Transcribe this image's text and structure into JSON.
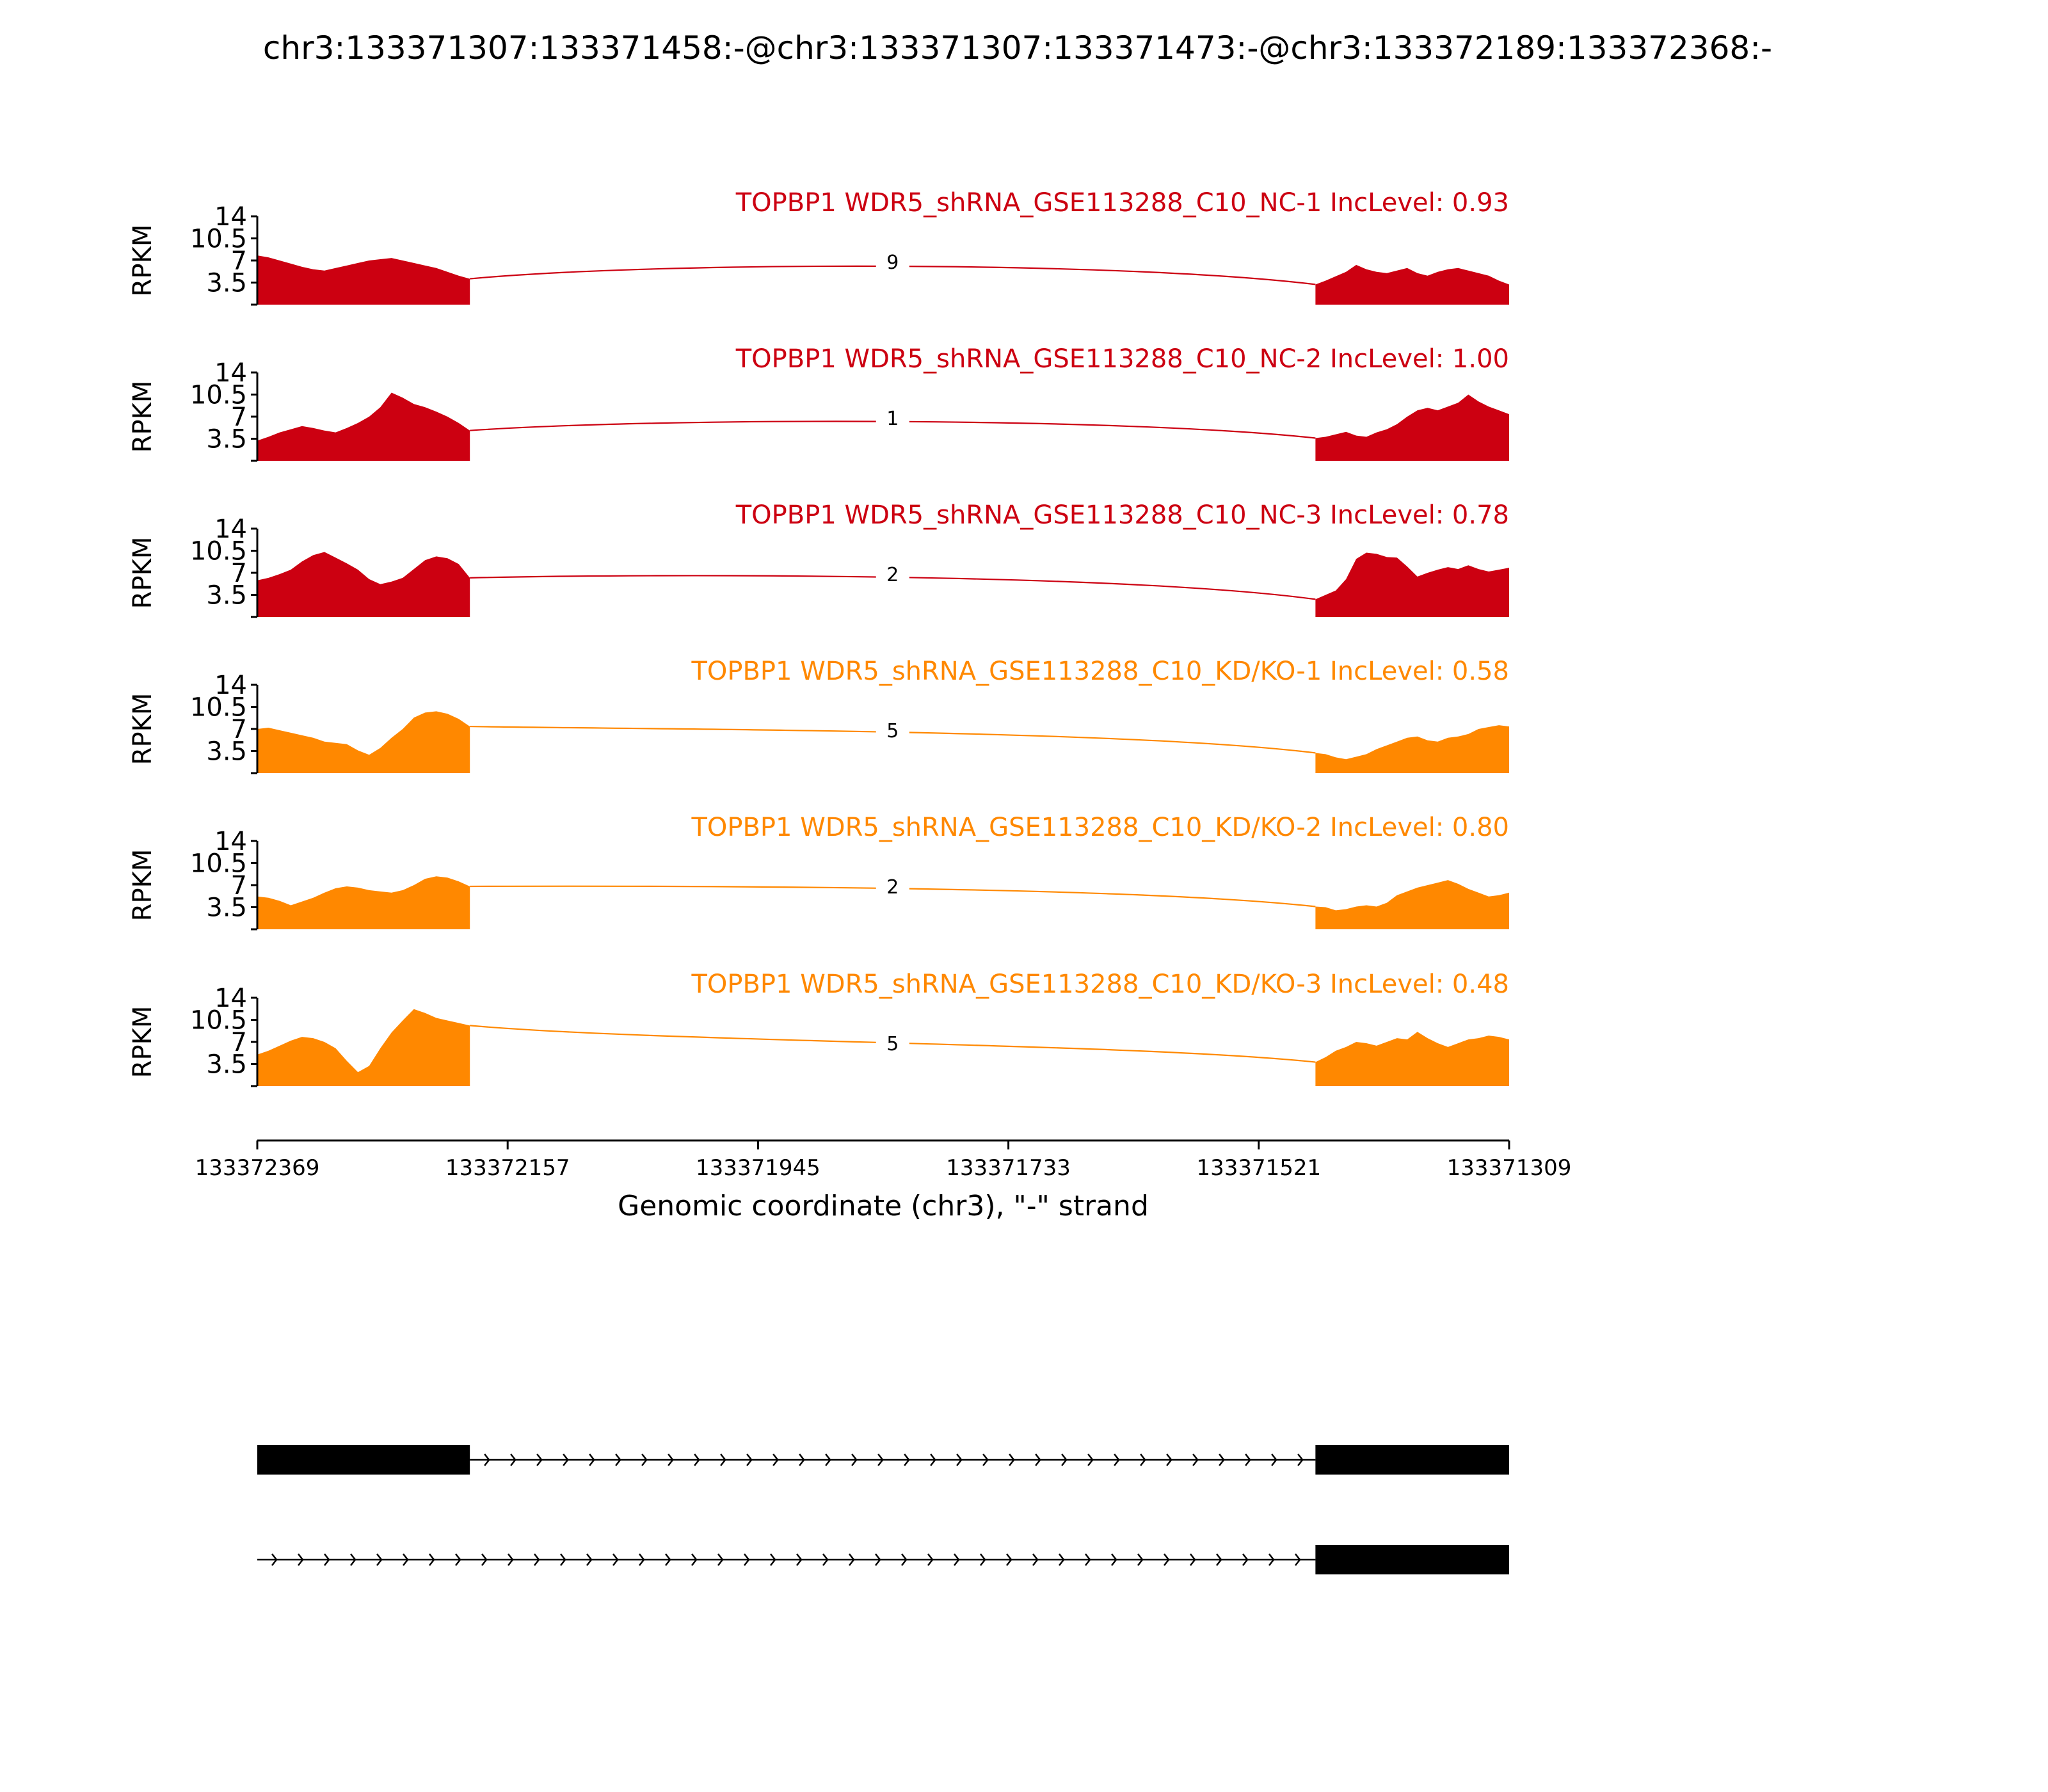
{
  "chart_data": {
    "type": "area",
    "title": "chr3:133371307:133371458:-@chr3:133371307:133371473:-@chr3:133372189:133372368:-",
    "xlabel": "Genomic coordinate (chr3), \"-\" strand",
    "ylabel": "RPKM",
    "x_reversed": true,
    "xlim": [
      133372369,
      133371309
    ],
    "x_ticks": [
      "133372369",
      "133372157",
      "133371945",
      "133371733",
      "133371521",
      "133371309"
    ],
    "ylim": [
      0,
      14
    ],
    "y_ticks": [
      "3.5",
      "7",
      "10.5",
      "14"
    ],
    "grid": false,
    "exons": [
      {
        "start": 133372369,
        "end": 133372189
      },
      {
        "start": 133371473,
        "end": 133371309
      }
    ],
    "colors": {
      "NC": "#cc0011",
      "KD": "#ff8800"
    },
    "series": [
      {
        "name": "TOPBP1 WDR5_shRNA_GSE113288_C10_NC-1 IncLevel: 0.93",
        "group": "NC",
        "exon1_profile": [
          7.8,
          7.5,
          7.0,
          6.5,
          6.0,
          5.6,
          5.4,
          5.8,
          6.2,
          6.6,
          7.0,
          7.2,
          7.4,
          7.0,
          6.6,
          6.2,
          5.8,
          5.2,
          4.6,
          4.1
        ],
        "exon2_profile": [
          3.2,
          3.8,
          4.5,
          5.2,
          6.3,
          5.6,
          5.2,
          5.0,
          5.4,
          5.8,
          5.0,
          4.6,
          5.2,
          5.6,
          5.8,
          5.4,
          5.0,
          4.6,
          3.8,
          3.2
        ],
        "junction_label": "9"
      },
      {
        "name": "TOPBP1 WDR5_shRNA_GSE113288_C10_NC-2 IncLevel: 1.00",
        "group": "NC",
        "exon1_profile": [
          3.2,
          3.8,
          4.5,
          5.0,
          5.5,
          5.2,
          4.8,
          4.5,
          5.2,
          6.0,
          7.0,
          8.5,
          10.8,
          10.0,
          9.0,
          8.5,
          7.8,
          7.0,
          6.0,
          4.8
        ],
        "exon2_profile": [
          3.6,
          3.8,
          4.2,
          4.6,
          4.0,
          3.8,
          4.5,
          5.0,
          5.8,
          7.0,
          8.0,
          8.4,
          8.0,
          8.6,
          9.2,
          10.5,
          9.4,
          8.6,
          8.0,
          7.4
        ],
        "junction_label": "1"
      },
      {
        "name": "TOPBP1 WDR5_shRNA_GSE113288_C10_NC-3 IncLevel: 0.78",
        "group": "NC",
        "exon1_profile": [
          5.8,
          6.2,
          6.8,
          7.5,
          8.8,
          9.8,
          10.3,
          9.4,
          8.5,
          7.5,
          6.0,
          5.2,
          5.6,
          6.2,
          7.6,
          9.0,
          9.6,
          9.3,
          8.4,
          6.2
        ],
        "exon2_profile": [
          2.8,
          3.5,
          4.2,
          6.0,
          9.2,
          10.2,
          10.0,
          9.5,
          9.4,
          8.0,
          6.4,
          7.0,
          7.5,
          7.9,
          7.6,
          8.2,
          7.6,
          7.2,
          7.5,
          7.8
        ],
        "junction_label": "2"
      },
      {
        "name": "TOPBP1 WDR5_shRNA_GSE113288_C10_KD/KO-1 IncLevel: 0.58",
        "group": "KD",
        "exon1_profile": [
          7.0,
          7.2,
          6.8,
          6.4,
          6.0,
          5.6,
          5.0,
          4.8,
          4.6,
          3.6,
          2.9,
          4.0,
          5.6,
          7.0,
          8.8,
          9.6,
          9.8,
          9.4,
          8.6,
          7.4
        ],
        "exon2_profile": [
          3.2,
          3.0,
          2.5,
          2.2,
          2.6,
          3.0,
          3.8,
          4.4,
          5.0,
          5.6,
          5.8,
          5.2,
          5.0,
          5.6,
          5.8,
          6.2,
          7.0,
          7.3,
          7.6,
          7.4
        ],
        "junction_label": "5"
      },
      {
        "name": "TOPBP1 WDR5_shRNA_GSE113288_C10_KD/KO-2 IncLevel: 0.80",
        "group": "KD",
        "exon1_profile": [
          5.2,
          5.0,
          4.5,
          3.8,
          4.4,
          5.0,
          5.8,
          6.5,
          6.8,
          6.6,
          6.2,
          6.0,
          5.8,
          6.2,
          7.0,
          8.0,
          8.4,
          8.2,
          7.6,
          6.8
        ],
        "exon2_profile": [
          3.6,
          3.5,
          3.0,
          3.2,
          3.6,
          3.8,
          3.6,
          4.2,
          5.4,
          6.0,
          6.6,
          7.0,
          7.4,
          7.8,
          7.2,
          6.4,
          5.8,
          5.2,
          5.4,
          5.8
        ],
        "junction_label": "2"
      },
      {
        "name": "TOPBP1 WDR5_shRNA_GSE113288_C10_KD/KO-3 IncLevel: 0.48",
        "group": "KD",
        "exon1_profile": [
          5.0,
          5.6,
          6.4,
          7.2,
          7.8,
          7.6,
          7.0,
          6.0,
          4.0,
          2.2,
          3.2,
          6.0,
          8.5,
          10.4,
          12.2,
          11.6,
          10.8,
          10.4,
          10.0,
          9.6
        ],
        "exon2_profile": [
          3.8,
          4.6,
          5.6,
          6.2,
          7.0,
          6.8,
          6.4,
          7.0,
          7.6,
          7.4,
          8.6,
          7.6,
          6.8,
          6.2,
          6.8,
          7.4,
          7.6,
          8.0,
          7.8,
          7.4
        ],
        "junction_label": "5"
      }
    ],
    "isoforms": [
      {
        "exons": [
          [
            133372369,
            133372189
          ],
          [
            133371473,
            133371309
          ]
        ]
      },
      {
        "exons": [
          [
            133371473,
            133371309
          ]
        ],
        "line_start": 133372369
      }
    ]
  }
}
